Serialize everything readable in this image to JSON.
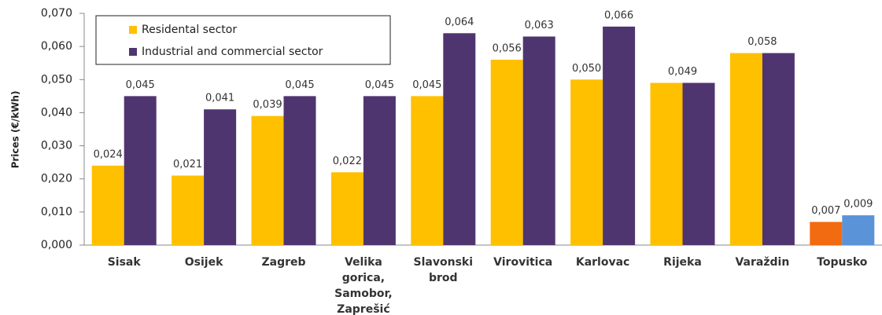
{
  "chart_data": {
    "type": "bar",
    "y_label": "Prices (€/kWh)",
    "categories": [
      "Sisak",
      "Osijek",
      "Zagreb",
      "Velika gorica, Samobor, Zaprešić",
      "Slavonski brod",
      "Virovitica",
      "Karlovac",
      "Rijeka",
      "Varaždin",
      "Topusko"
    ],
    "series": [
      {
        "name": "Residental sector",
        "color": "#ffc000",
        "colors": [
          "#ffc000",
          "#ffc000",
          "#ffc000",
          "#ffc000",
          "#ffc000",
          "#ffc000",
          "#ffc000",
          "#ffc000",
          "#ffc000",
          "#f26b10"
        ],
        "values": [
          0.024,
          0.021,
          0.039,
          0.022,
          0.045,
          0.056,
          0.05,
          0.049,
          0.058,
          0.007
        ],
        "value_labels": [
          "0,024",
          "0,021",
          "0,039",
          "0,022",
          "0,045",
          "0,056",
          "0,050",
          null,
          null,
          "0,007"
        ]
      },
      {
        "name": "Industrial and commercial sector",
        "color": "#4f3570",
        "colors": [
          "#4f3570",
          "#4f3570",
          "#4f3570",
          "#4f3570",
          "#4f3570",
          "#4f3570",
          "#4f3570",
          "#4f3570",
          "#4f3570",
          "#5b93d8"
        ],
        "values": [
          0.045,
          0.041,
          0.045,
          0.045,
          0.064,
          0.063,
          0.066,
          0.049,
          0.058,
          0.009
        ],
        "value_labels": [
          "0,045",
          "0,041",
          "0,045",
          "0,045",
          "0,064",
          "0,063",
          "0,066",
          "0,049",
          "0,058",
          "0,009"
        ]
      }
    ],
    "ylim": [
      0,
      0.07
    ],
    "yticks": [
      {
        "value": 0,
        "label": "0,000"
      },
      {
        "value": 0.01,
        "label": "0,010"
      },
      {
        "value": 0.02,
        "label": "0,020"
      },
      {
        "value": 0.03,
        "label": "0,030"
      },
      {
        "value": 0.04,
        "label": "0,040"
      },
      {
        "value": 0.05,
        "label": "0,050"
      },
      {
        "value": 0.06,
        "label": "0,060"
      },
      {
        "value": 0.07,
        "label": "0,070"
      }
    ],
    "legend": "upper left",
    "grid": false
  }
}
